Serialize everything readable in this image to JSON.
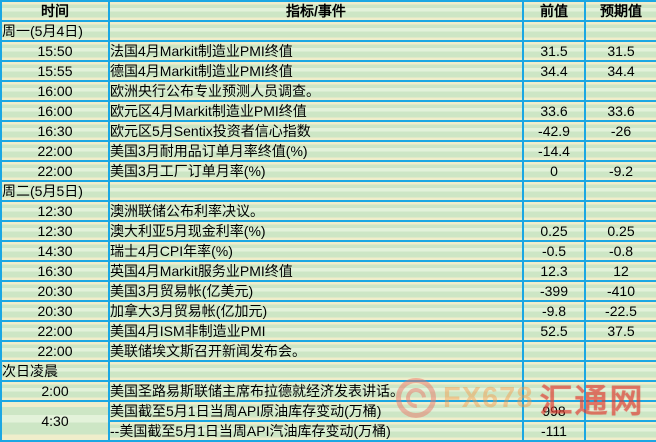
{
  "table": {
    "headers": {
      "time": "时间",
      "event": "指标/事件",
      "prev": "前值",
      "exp": "预期值"
    },
    "rows": [
      {
        "type": "day",
        "label": "周一(5月4日)"
      },
      {
        "type": "data",
        "time": "15:50",
        "event": "法国4月Markit制造业PMI终值",
        "prev": "31.5",
        "exp": "31.5"
      },
      {
        "type": "data",
        "time": "15:55",
        "event": "德国4月Markit制造业PMI终值",
        "prev": "34.4",
        "exp": "34.4"
      },
      {
        "type": "data",
        "time": "16:00",
        "event": "欧洲央行公布专业预测人员调查。",
        "prev": "",
        "exp": ""
      },
      {
        "type": "data",
        "time": "16:00",
        "event": "欧元区4月Markit制造业PMI终值",
        "prev": "33.6",
        "exp": "33.6"
      },
      {
        "type": "data",
        "time": "16:30",
        "event": "欧元区5月Sentix投资者信心指数",
        "prev": "-42.9",
        "exp": "-26"
      },
      {
        "type": "data",
        "time": "22:00",
        "event": "美国3月耐用品订单月率终值(%)",
        "prev": "-14.4",
        "exp": ""
      },
      {
        "type": "data",
        "time": "22:00",
        "event": "美国3月工厂订单月率(%)",
        "prev": "0",
        "exp": "-9.2"
      },
      {
        "type": "day",
        "label": "周二(5月5日)"
      },
      {
        "type": "data",
        "time": "12:30",
        "event": "澳洲联储公布利率决议。",
        "prev": "",
        "exp": ""
      },
      {
        "type": "data",
        "time": "12:30",
        "event": "澳大利亚5月现金利率(%)",
        "prev": "0.25",
        "exp": "0.25"
      },
      {
        "type": "data",
        "time": "14:30",
        "event": "瑞士4月CPI年率(%)",
        "prev": "-0.5",
        "exp": "-0.8"
      },
      {
        "type": "data",
        "time": "16:30",
        "event": "英国4月Markit服务业PMI终值",
        "prev": "12.3",
        "exp": "12"
      },
      {
        "type": "data",
        "time": "20:30",
        "event": "美国3月贸易帐(亿美元)",
        "prev": "-399",
        "exp": "-410"
      },
      {
        "type": "data",
        "time": "20:30",
        "event": "加拿大3月贸易帐(亿加元)",
        "prev": "-9.8",
        "exp": "-22.5"
      },
      {
        "type": "data",
        "time": "22:00",
        "event": "美国4月ISM非制造业PMI",
        "prev": "52.5",
        "exp": "37.5"
      },
      {
        "type": "data",
        "time": "22:00",
        "event": "美联储埃文斯召开新闻发布会。",
        "prev": "",
        "exp": ""
      },
      {
        "type": "day",
        "label": "次日凌晨"
      },
      {
        "type": "data",
        "time": "2:00",
        "event": "美国圣路易斯联储主席布拉德就经济发表讲话。",
        "prev": "",
        "exp": ""
      },
      {
        "type": "data",
        "time": "4:30",
        "timespan": 2,
        "event": "美国截至5月1日当周API原油库存变动(万桶)",
        "prev": "998",
        "exp": ""
      },
      {
        "type": "data",
        "time": null,
        "event": "--美国截至5月1日当周API汽油库存变动(万桶)",
        "prev": "-111",
        "exp": ""
      }
    ]
  },
  "watermark": {
    "brand": "FX678",
    "site": "汇通网"
  },
  "colors": {
    "grid": "#1ba7e3",
    "stripe_yellow": "#f0eecb",
    "stripe_green": "#cde6c5",
    "stripe_mint": "#e3f2da",
    "watermark_orange": "#f8943e",
    "watermark_red": "#df3930"
  }
}
